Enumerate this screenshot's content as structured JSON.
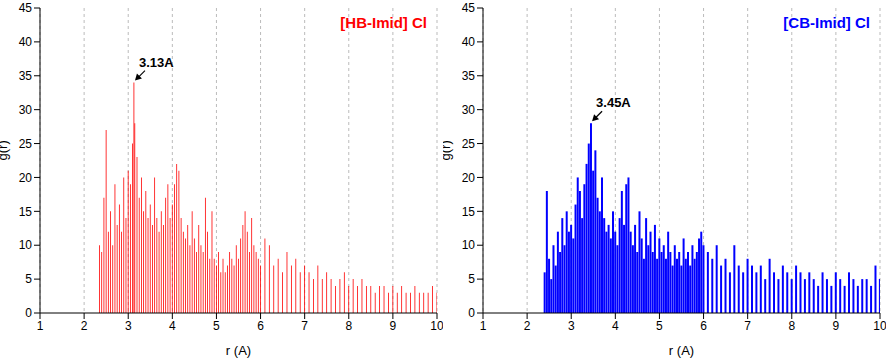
{
  "chart_data": [
    {
      "type": "bar",
      "title": "[HB-Imid] Cl",
      "color": "#ff0000",
      "x_label": "r (A)",
      "y_label": "g(r)",
      "xlim": [
        1,
        10
      ],
      "ylim": [
        0,
        45
      ],
      "xticks": [
        1,
        2,
        3,
        4,
        5,
        6,
        7,
        8,
        9,
        10
      ],
      "yticks": [
        0,
        5,
        10,
        15,
        20,
        25,
        30,
        35,
        40,
        45
      ],
      "grid": "x",
      "annotation": {
        "text": "3.13A",
        "x": 3.13,
        "y": 34
      },
      "x": [
        2.35,
        2.4,
        2.45,
        2.5,
        2.55,
        2.6,
        2.65,
        2.7,
        2.75,
        2.8,
        2.85,
        2.9,
        2.95,
        3,
        3.05,
        3.1,
        3.13,
        3.15,
        3.2,
        3.25,
        3.3,
        3.35,
        3.4,
        3.45,
        3.5,
        3.55,
        3.6,
        3.65,
        3.7,
        3.75,
        3.8,
        3.85,
        3.9,
        3.95,
        4,
        4.05,
        4.1,
        4.15,
        4.2,
        4.25,
        4.3,
        4.35,
        4.4,
        4.45,
        4.5,
        4.55,
        4.6,
        4.65,
        4.7,
        4.75,
        4.8,
        4.85,
        4.9,
        4.95,
        5,
        5.05,
        5.1,
        5.15,
        5.2,
        5.25,
        5.3,
        5.35,
        5.4,
        5.45,
        5.5,
        5.55,
        5.6,
        5.65,
        5.7,
        5.75,
        5.8,
        5.85,
        5.9,
        5.95,
        6,
        6.1,
        6.2,
        6.3,
        6.4,
        6.5,
        6.6,
        6.7,
        6.8,
        6.9,
        7,
        7.1,
        7.2,
        7.3,
        7.4,
        7.5,
        7.6,
        7.7,
        7.8,
        7.9,
        8,
        8.1,
        8.2,
        8.3,
        8.4,
        8.5,
        8.6,
        8.7,
        8.8,
        8.9,
        9,
        9.1,
        9.2,
        9.3,
        9.4,
        9.5,
        9.6,
        9.7,
        9.8,
        9.9,
        10
      ],
      "values": [
        10,
        9,
        17,
        27,
        12,
        15,
        10,
        19,
        13,
        16,
        12,
        20,
        14,
        21,
        19,
        25,
        34,
        28,
        23,
        17,
        20,
        15,
        18,
        14,
        16,
        13,
        20,
        14,
        12,
        15,
        13,
        17,
        19,
        14,
        16,
        19,
        22,
        21,
        14,
        12,
        11,
        13,
        10,
        15,
        11,
        9,
        13,
        10,
        9,
        17,
        12,
        8,
        15,
        8,
        7,
        9,
        6,
        8,
        6,
        7,
        9,
        8,
        7,
        10,
        8,
        11,
        13,
        15,
        12,
        9,
        14,
        10,
        9,
        8,
        7,
        11,
        10,
        7,
        8,
        6,
        9,
        7,
        8,
        6,
        7,
        6,
        5,
        7,
        5,
        6,
        5,
        4,
        5,
        6,
        4,
        5,
        4,
        5,
        4,
        4,
        3,
        4,
        4,
        3,
        4,
        3,
        4,
        3,
        3,
        4,
        3,
        3,
        3,
        4,
        3
      ]
    },
    {
      "type": "bar",
      "title": "[CB-Imid] Cl",
      "color": "#0000ff",
      "x_label": "r (A)",
      "y_label": "g(r)",
      "xlim": [
        1,
        10
      ],
      "ylim": [
        0,
        45
      ],
      "xticks": [
        1,
        2,
        3,
        4,
        5,
        6,
        7,
        8,
        9,
        10
      ],
      "yticks": [
        0,
        5,
        10,
        15,
        20,
        25,
        30,
        35,
        40,
        45
      ],
      "grid": "x",
      "annotation": {
        "text": "3.45A",
        "x": 3.45,
        "y": 28
      },
      "x": [
        2.35,
        2.4,
        2.45,
        2.5,
        2.55,
        2.6,
        2.65,
        2.7,
        2.75,
        2.8,
        2.85,
        2.9,
        2.95,
        3,
        3.05,
        3.1,
        3.15,
        3.2,
        3.25,
        3.3,
        3.35,
        3.4,
        3.45,
        3.5,
        3.55,
        3.6,
        3.65,
        3.7,
        3.75,
        3.8,
        3.85,
        3.9,
        3.95,
        4,
        4.05,
        4.1,
        4.15,
        4.2,
        4.25,
        4.3,
        4.35,
        4.4,
        4.45,
        4.5,
        4.55,
        4.6,
        4.65,
        4.7,
        4.75,
        4.8,
        4.85,
        4.9,
        4.95,
        5,
        5.05,
        5.1,
        5.15,
        5.2,
        5.25,
        5.3,
        5.35,
        5.4,
        5.45,
        5.5,
        5.55,
        5.6,
        5.65,
        5.7,
        5.75,
        5.8,
        5.85,
        5.9,
        5.95,
        6,
        6.1,
        6.2,
        6.3,
        6.4,
        6.5,
        6.6,
        6.7,
        6.8,
        6.9,
        7,
        7.1,
        7.2,
        7.3,
        7.4,
        7.5,
        7.6,
        7.7,
        7.8,
        7.9,
        8,
        8.1,
        8.2,
        8.3,
        8.4,
        8.5,
        8.6,
        8.7,
        8.8,
        8.9,
        9,
        9.1,
        9.2,
        9.3,
        9.4,
        9.5,
        9.6,
        9.7,
        9.8,
        9.9,
        10
      ],
      "values": [
        0,
        6,
        18,
        8,
        5,
        10,
        7,
        12,
        9,
        14,
        10,
        15,
        12,
        13,
        11,
        16,
        20,
        18,
        14,
        19,
        22,
        25,
        28,
        21,
        24,
        17,
        15,
        20,
        14,
        12,
        13,
        11,
        15,
        12,
        10,
        14,
        18,
        13,
        19,
        20,
        12,
        10,
        13,
        9,
        15,
        11,
        8,
        14,
        10,
        12,
        9,
        13,
        8,
        11,
        9,
        10,
        8,
        12,
        9,
        7,
        10,
        8,
        9,
        7,
        11,
        8,
        9,
        7,
        10,
        8,
        9,
        11,
        12,
        10,
        9,
        8,
        10,
        7,
        8,
        6,
        10,
        7,
        6,
        8,
        7,
        6,
        7,
        5,
        8,
        6,
        5,
        7,
        6,
        5,
        7,
        6,
        5,
        6,
        5,
        4,
        6,
        5,
        4,
        6,
        5,
        4,
        6,
        5,
        4,
        5,
        5,
        4,
        7,
        5
      ]
    }
  ]
}
